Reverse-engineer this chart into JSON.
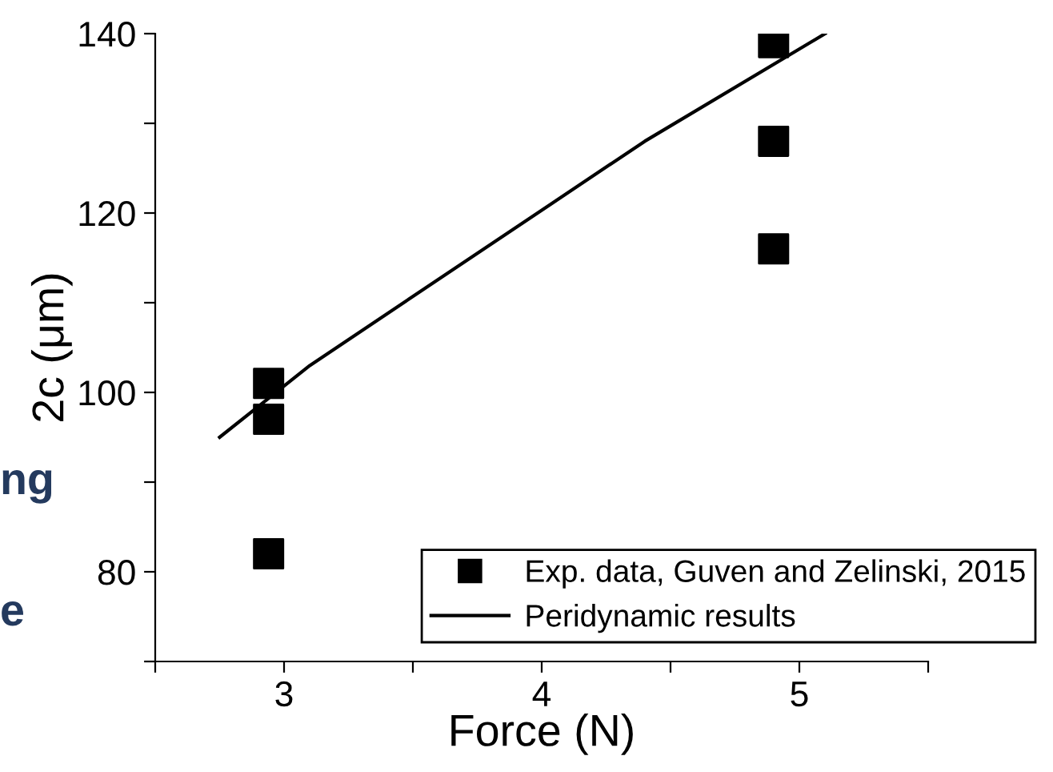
{
  "chart_data": {
    "type": "scatter",
    "xlabel": "Force (N)",
    "ylabel": "2c (μm)",
    "series": [
      {
        "name": "Exp. data, Guven and Zelinski, 2015",
        "color": "#000000",
        "marker": "square",
        "x": [
          2.94,
          2.94,
          2.94,
          4.9,
          4.9,
          4.9
        ],
        "values": [
          101,
          97,
          82,
          139,
          128,
          116
        ]
      },
      {
        "name": "Peridynamic results",
        "type": "line",
        "color": "#000000",
        "marker": "none",
        "line_style": "solid",
        "x": [
          2.75,
          3.1,
          4.4,
          5.1
        ],
        "values": [
          95,
          103,
          128,
          140
        ]
      }
    ],
    "xlim": [
      2.5,
      5.5
    ],
    "ylim": [
      70,
      140
    ],
    "xticks": [
      {
        "value": 2.5,
        "label": null
      },
      3,
      {
        "value": 3.5,
        "label": null
      },
      4,
      {
        "value": 4.5,
        "label": null
      },
      5,
      {
        "value": 5.5,
        "label": null
      }
    ],
    "yticks": [
      {
        "value": 70,
        "label": null
      },
      80,
      {
        "value": 90,
        "label": null
      },
      100,
      {
        "value": 110,
        "label": null
      },
      120,
      {
        "value": 130,
        "label": null
      },
      140
    ],
    "annotations": [
      "ng",
      "e"
    ],
    "grid": false,
    "legend": "bottom right"
  }
}
